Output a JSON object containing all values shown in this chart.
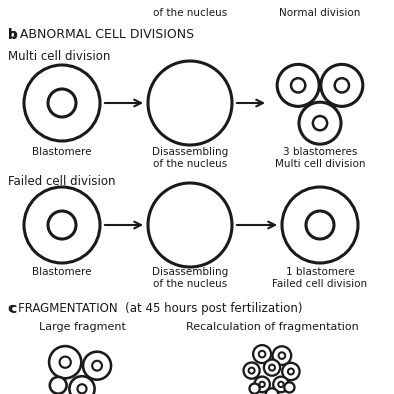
{
  "bg_color": "#ffffff",
  "text_color": "#1a1a1a",
  "line_color": "#1a1a1a",
  "top_labels": {
    "col2": "of the nucleus",
    "col3": "Normal division"
  },
  "section_b_title": "b ABNORMAL CELL DIVISIONS",
  "row1_label": "Multi cell division",
  "row2_label": "Failed cell division",
  "section_c_title": "c FRAGMENTATION  (at 45 hours post fertilization)",
  "bottom_labels": {
    "col1": "Large fragment",
    "col2": "Recalculation of fragmentation"
  },
  "cell_labels": {
    "b_row1_c1": "Blastomere",
    "b_row1_c2": "Disassembling\nof the nucleus",
    "b_row1_c3": "3 blastomeres\nMulti cell division",
    "b_row2_c1": "Blastomere",
    "b_row2_c2": "Disassembling\nof the nucleus",
    "b_row2_c3": "1 blastomere\nFailed cell division"
  }
}
